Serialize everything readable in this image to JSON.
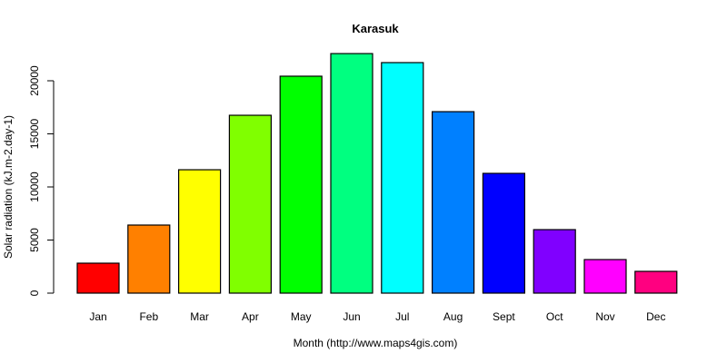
{
  "chart_data": {
    "type": "bar",
    "title": "Karasuk",
    "xlabel": "Month (http://www.maps4gis.com)",
    "ylabel": "Solar radiation (kJ.m-2.day-1)",
    "ylim": [
      0,
      22500
    ],
    "yticks": [
      0,
      5000,
      10000,
      15000,
      20000
    ],
    "grid": false,
    "legend": null,
    "categories": [
      "Jan",
      "Feb",
      "Mar",
      "Apr",
      "May",
      "Jun",
      "Jul",
      "Aug",
      "Sept",
      "Oct",
      "Nov",
      "Dec"
    ],
    "values": [
      2820,
      6410,
      11620,
      16750,
      20430,
      22560,
      21710,
      17090,
      11280,
      5980,
      3160,
      2050
    ],
    "colors": [
      "#FF0000",
      "#FF8000",
      "#FFFF00",
      "#80FF00",
      "#00FF00",
      "#00FF80",
      "#00FFFF",
      "#0080FF",
      "#0000FF",
      "#8000FF",
      "#FF00FF",
      "#FF0080"
    ]
  }
}
